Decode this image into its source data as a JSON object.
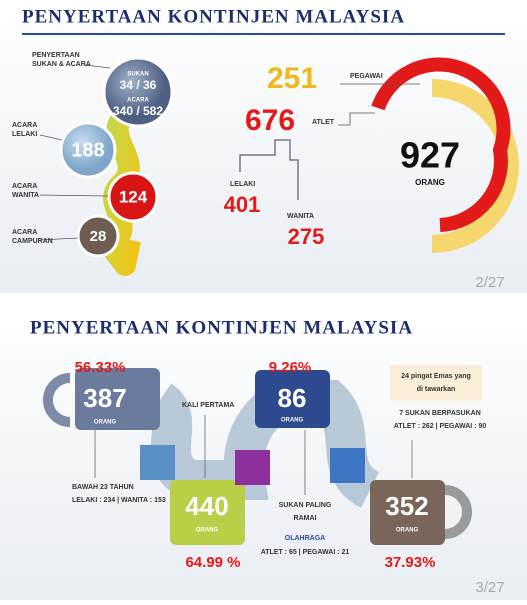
{
  "slides": [
    {
      "title": "PENYERTAAN KONTINJEN MALAYSIA",
      "labels": {
        "sukan_acara": [
          "PENYERTAAN",
          "SUKAN & ACARA"
        ],
        "lelaki": [
          "ACARA",
          "LELAKI"
        ],
        "wanita": [
          "ACARA",
          "WANITA"
        ],
        "campuran": [
          "ACARA",
          "CAMPURAN"
        ]
      },
      "circle": {
        "sukan_label": "SUKAN",
        "sukan": "34 / 36",
        "acara_label": "ACARA",
        "acara": "340 / 582"
      },
      "acara_lelaki": "188",
      "acara_wanita": "124",
      "acara_campuran": "28",
      "pegawai": {
        "value": "251",
        "label": "PEGAWAI"
      },
      "atlet": {
        "value": "676",
        "label": "ATLET"
      },
      "lelaki": {
        "label": "LELAKI",
        "value": "401"
      },
      "wanita": {
        "label": "WANITA",
        "value": "275"
      },
      "total": {
        "value": "927",
        "label": "ORANG"
      },
      "page": "2/27"
    },
    {
      "title": "PENYERTAAN KONTINJEN MALAYSIA",
      "u23": {
        "percent": "56.33%",
        "value": "387",
        "unit": "ORANG",
        "label": "BAWAH 23 TAHUN",
        "detail": "LELAKI : 234  |  WANITA : 153"
      },
      "first": {
        "label": "KALI PERTAMA",
        "value": "440",
        "unit": "ORANG",
        "percent": "64.99 %"
      },
      "most": {
        "percent": "9.26%",
        "value": "86",
        "unit": "ORANG",
        "label": [
          "SUKAN PALING",
          "RAMAI"
        ],
        "sport": "OLAHRAGA",
        "detail": "ATLET : 65  |  PEGAWAI : 21"
      },
      "team": {
        "note": [
          "24 pingat Emas yang",
          "di tawarkan"
        ],
        "label": "7 SUKAN BERPASUKAN",
        "detail": "ATLET : 262  |  PEGAWAI : 90",
        "value": "352",
        "unit": "ORANG",
        "percent": "37.93%"
      },
      "page": "3/27"
    }
  ]
}
